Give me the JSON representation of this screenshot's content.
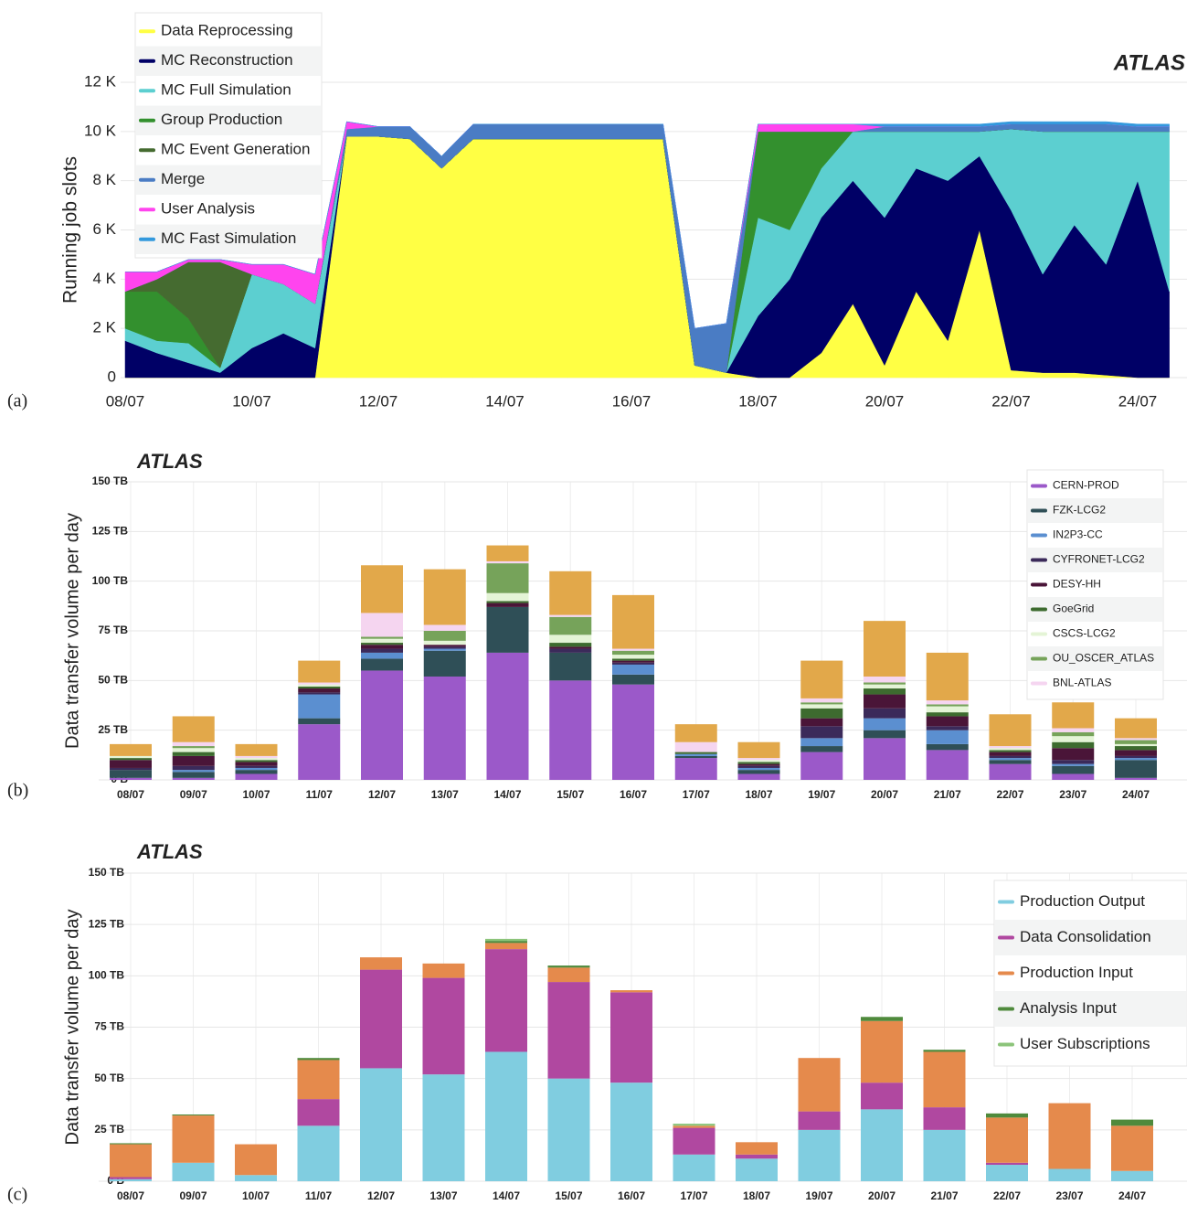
{
  "chart_data": [
    {
      "type": "area",
      "panel_label": "(a)",
      "title": "ATLAS",
      "ylabel": "Running job slots",
      "categories": [
        "08/07",
        null,
        null,
        null,
        "10/07",
        null,
        null,
        null,
        "12/07",
        null,
        null,
        null,
        "14/07",
        null,
        null,
        null,
        "16/07",
        null,
        null,
        null,
        "18/07",
        null,
        null,
        null,
        "20/07",
        null,
        null,
        null,
        "22/07",
        null,
        null,
        null,
        "24/07",
        null
      ],
      "ylim": [
        0,
        12000
      ],
      "yticks": [
        0,
        {
          "value": 2000,
          "label": "2 K"
        },
        {
          "value": 4000,
          "label": "4 K"
        },
        {
          "value": 6000,
          "label": "6 K"
        },
        {
          "value": 8000,
          "label": "8 K"
        },
        {
          "value": 10000,
          "label": "10 K"
        },
        {
          "value": 12000,
          "label": "12 K"
        }
      ],
      "grid": true,
      "legend": "top-left",
      "series": [
        {
          "name": "Data Reprocessing",
          "color": "#ffff44",
          "values": [
            0,
            0,
            0,
            0,
            0,
            0,
            0,
            9800,
            9800,
            9700,
            8500,
            9700,
            9700,
            9700,
            9700,
            9700,
            9700,
            9700,
            500,
            200,
            0,
            0,
            1000,
            3000,
            500,
            3500,
            1500,
            6000,
            300,
            200,
            200,
            100,
            0,
            0
          ]
        },
        {
          "name": "MC Reconstruction",
          "color": "#000066",
          "values": [
            1500,
            1000,
            600,
            200,
            1200,
            1800,
            1200,
            0,
            0,
            0,
            0,
            0,
            0,
            0,
            0,
            0,
            0,
            0,
            0,
            0,
            2500,
            4000,
            5500,
            5000,
            6000,
            5000,
            6500,
            3000,
            6500,
            4000,
            6000,
            4500,
            8000,
            3500
          ]
        },
        {
          "name": "MC Full Simulation",
          "color": "#5ccfd0",
          "values": [
            500,
            500,
            800,
            200,
            3000,
            2000,
            1800,
            0,
            0,
            0,
            0,
            0,
            0,
            0,
            0,
            0,
            0,
            0,
            0,
            0,
            4000,
            2000,
            2000,
            2000,
            3500,
            1500,
            2000,
            1000,
            3300,
            5800,
            3800,
            5400,
            2000,
            6500
          ]
        },
        {
          "name": "Group Production",
          "color": "#33902e",
          "values": [
            1500,
            2000,
            1000,
            0,
            0,
            0,
            0,
            0,
            0,
            0,
            0,
            0,
            0,
            0,
            0,
            0,
            0,
            0,
            0,
            0,
            3500,
            4000,
            1500,
            0,
            0,
            0,
            0,
            0,
            0,
            0,
            0,
            0,
            0,
            0
          ]
        },
        {
          "name": "MC Event Generation",
          "color": "#456b30",
          "values": [
            0,
            500,
            2300,
            4300,
            0,
            0,
            0,
            0,
            0,
            0,
            0,
            0,
            0,
            0,
            0,
            0,
            0,
            0,
            0,
            0,
            0,
            0,
            0,
            0,
            0,
            0,
            0,
            0,
            0,
            0,
            0,
            0,
            0,
            0
          ]
        },
        {
          "name": "Merge",
          "color": "#4a7cc4",
          "values": [
            0,
            0,
            0,
            0,
            0,
            0,
            0,
            300,
            400,
            500,
            500,
            600,
            600,
            600,
            600,
            600,
            600,
            600,
            1500,
            2000,
            0,
            0,
            0,
            0,
            200,
            200,
            200,
            200,
            200,
            300,
            300,
            300,
            200,
            200
          ]
        },
        {
          "name": "User Analysis",
          "color": "#ff44ee",
          "values": [
            800,
            300,
            100,
            100,
            400,
            800,
            1200,
            300,
            0,
            0,
            0,
            0,
            0,
            0,
            0,
            0,
            0,
            0,
            0,
            0,
            300,
            300,
            300,
            300,
            0,
            0,
            0,
            0,
            0,
            0,
            0,
            0,
            0,
            0
          ]
        },
        {
          "name": "MC Fast Simulation",
          "color": "#3399dd",
          "values": [
            0,
            0,
            0,
            0,
            0,
            0,
            0,
            0,
            0,
            0,
            0,
            0,
            0,
            0,
            0,
            0,
            0,
            0,
            0,
            0,
            0,
            0,
            0,
            0,
            100,
            100,
            100,
            100,
            100,
            100,
            100,
            100,
            100,
            100
          ]
        }
      ]
    },
    {
      "type": "bar",
      "panel_label": "(b)",
      "title": "ATLAS",
      "ylabel": "Data transfer volume per day",
      "categories": [
        "08/07",
        "09/07",
        "10/07",
        "11/07",
        "12/07",
        "13/07",
        "14/07",
        "15/07",
        "16/07",
        "17/07",
        "18/07",
        "19/07",
        "20/07",
        "21/07",
        "22/07",
        "23/07",
        "24/07"
      ],
      "ylim": [
        0,
        150
      ],
      "yticks": [
        {
          "value": 0,
          "label": "0 B"
        },
        {
          "value": 25,
          "label": "25 TB"
        },
        {
          "value": 50,
          "label": "50 TB"
        },
        {
          "value": 75,
          "label": "75 TB"
        },
        {
          "value": 100,
          "label": "100 TB"
        },
        {
          "value": 125,
          "label": "125 TB"
        },
        {
          "value": 150,
          "label": "150 TB"
        }
      ],
      "grid": true,
      "legend": "top-right",
      "series": [
        {
          "name": "CERN-PROD",
          "color": "#9b59c9",
          "values": [
            1,
            1,
            3,
            28,
            55,
            52,
            64,
            50,
            48,
            11,
            3,
            14,
            21,
            15,
            8,
            3,
            1
          ]
        },
        {
          "name": "FZK-LCG2",
          "color": "#2f4f57",
          "values": [
            4,
            3,
            2,
            3,
            6,
            13,
            23,
            14,
            5,
            1,
            2,
            3,
            4,
            3,
            2,
            4,
            9
          ]
        },
        {
          "name": "IN2P3-CC",
          "color": "#5b8fd0",
          "values": [
            0,
            1,
            1,
            12,
            3,
            1,
            0,
            0,
            5,
            1,
            1,
            4,
            6,
            7,
            1,
            1,
            1
          ]
        },
        {
          "name": "CYFRONET-LCG2",
          "color": "#3b2a5a",
          "values": [
            1,
            2,
            1,
            1,
            2,
            1,
            0,
            2,
            1,
            0,
            1,
            6,
            5,
            2,
            1,
            2,
            1
          ]
        },
        {
          "name": "DESY-HH",
          "color": "#4a1538",
          "values": [
            4,
            5,
            2,
            2,
            2,
            1,
            2,
            1,
            1,
            0,
            1,
            4,
            7,
            5,
            2,
            6,
            3
          ]
        },
        {
          "name": "GoeGrid",
          "color": "#3d6b2f",
          "values": [
            1,
            2,
            1,
            1,
            1,
            0,
            1,
            2,
            1,
            1,
            1,
            5,
            3,
            2,
            1,
            3,
            2
          ]
        },
        {
          "name": "CSCS-LCG2",
          "color": "#e4f4d6",
          "values": [
            1,
            2,
            1,
            1,
            2,
            2,
            4,
            4,
            2,
            0,
            1,
            2,
            2,
            3,
            1,
            3,
            1
          ]
        },
        {
          "name": "OU_OSCER_ATLAS",
          "color": "#76a35a",
          "values": [
            0,
            1,
            0,
            0,
            1,
            5,
            15,
            9,
            2,
            0,
            0,
            1,
            1,
            1,
            0,
            2,
            2
          ]
        },
        {
          "name": "BNL-ATLAS",
          "color": "#f5d5f0",
          "values": [
            0,
            2,
            1,
            1,
            12,
            3,
            1,
            1,
            1,
            5,
            1,
            2,
            3,
            2,
            1,
            2,
            1
          ]
        },
        {
          "color": "#e2a84a",
          "values": [
            6,
            13,
            6,
            11,
            24,
            28,
            8,
            22,
            27,
            9,
            8,
            19,
            28,
            24,
            16,
            13,
            10
          ]
        }
      ]
    },
    {
      "type": "bar",
      "panel_label": "(c)",
      "title": "ATLAS",
      "ylabel": "Data transfer volume per day",
      "categories": [
        "08/07",
        "09/07",
        "10/07",
        "11/07",
        "12/07",
        "13/07",
        "14/07",
        "15/07",
        "16/07",
        "17/07",
        "18/07",
        "19/07",
        "20/07",
        "21/07",
        "22/07",
        "23/07",
        "24/07"
      ],
      "ylim": [
        0,
        150
      ],
      "yticks": [
        {
          "value": 0,
          "label": "0 B"
        },
        {
          "value": 25,
          "label": "25 TB"
        },
        {
          "value": 50,
          "label": "50 TB"
        },
        {
          "value": 75,
          "label": "75 TB"
        },
        {
          "value": 100,
          "label": "100 TB"
        },
        {
          "value": 125,
          "label": "125 TB"
        },
        {
          "value": 150,
          "label": "150 TB"
        }
      ],
      "grid": true,
      "legend": "top-right",
      "series": [
        {
          "name": "Production Output",
          "color": "#80cde0",
          "values": [
            1,
            9,
            3,
            27,
            55,
            52,
            63,
            50,
            48,
            13,
            11,
            25,
            35,
            25,
            8,
            6,
            5
          ]
        },
        {
          "name": "Data Consolidation",
          "color": "#b048a0",
          "values": [
            1,
            0,
            0,
            13,
            48,
            47,
            50,
            47,
            44,
            13,
            2,
            9,
            13,
            11,
            1,
            0,
            0
          ]
        },
        {
          "name": "Production Input",
          "color": "#e58a4c",
          "values": [
            16,
            23,
            15,
            19,
            6,
            7,
            3,
            7,
            1,
            1,
            6,
            26,
            30,
            27,
            22,
            32,
            22
          ]
        },
        {
          "name": "Analysis Input",
          "color": "#4f8a3c",
          "values": [
            0.5,
            0.5,
            0,
            1,
            0,
            0,
            1,
            1,
            0,
            0,
            0,
            0,
            2,
            1,
            2,
            0,
            3
          ]
        },
        {
          "name": "User Subscriptions",
          "color": "#8cc47a",
          "values": [
            0,
            0,
            0,
            0,
            0,
            0,
            1,
            0,
            0,
            1,
            0,
            0,
            0,
            0,
            0,
            0,
            0
          ]
        }
      ]
    }
  ]
}
